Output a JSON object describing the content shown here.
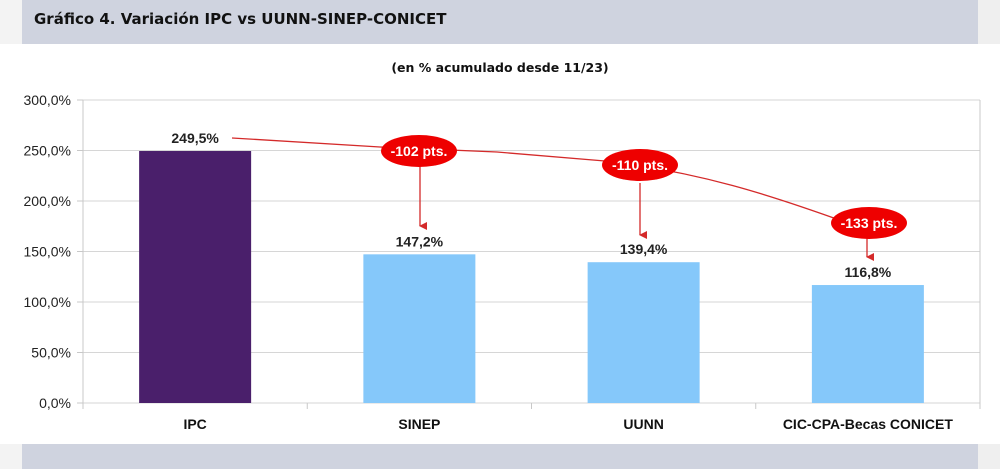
{
  "header": {
    "title": "Gráfico 4. Variación IPC vs UUNN-SINEP-CONICET"
  },
  "chart_data": {
    "type": "bar",
    "title": "Gráfico 4. Variación IPC vs UUNN-SINEP-CONICET",
    "subtitle": "(en % acumulado desde 11/23)",
    "categories": [
      "IPC",
      "SINEP",
      "UUNN",
      "CIC-CPA-Becas CONICET"
    ],
    "values": [
      249.5,
      147.2,
      139.4,
      116.8
    ],
    "value_labels": [
      "249,5%",
      "147,2%",
      "139,4%",
      "116,8%"
    ],
    "bar_colors": [
      "#4a1f6b",
      "#85c8fa",
      "#85c8fa",
      "#85c8fa"
    ],
    "xlabel": "",
    "ylabel": "",
    "ylim": [
      0,
      300
    ],
    "yticks": [
      0,
      50,
      100,
      150,
      200,
      250,
      300
    ],
    "ytick_labels": [
      "0,0%",
      "50,0%",
      "100,0%",
      "150,0%",
      "200,0%",
      "250,0%",
      "300,0%"
    ],
    "grid": true,
    "legend": "none",
    "annotations": [
      {
        "text": "-102 pts.",
        "target": "SINEP",
        "difference": -102
      },
      {
        "text": "-110 pts.",
        "target": "UUNN",
        "difference": -110
      },
      {
        "text": "-133 pts.",
        "target": "CIC-CPA-Becas CONICET",
        "difference": -133
      }
    ],
    "annotation_color": "#ee0000"
  }
}
